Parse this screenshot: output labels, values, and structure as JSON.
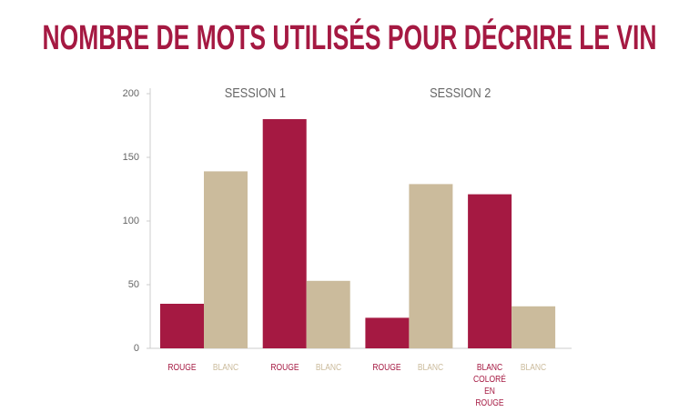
{
  "chart_data": {
    "type": "bar",
    "title": "NOMBRE DE MOTS UTILISÉS POUR DÉCRIRE LE VIN",
    "annotations": [
      "SESSION 1",
      "SESSION 2"
    ],
    "categories": [
      "ROUGE",
      "BLANC",
      "ROUGE",
      "BLANC",
      "ROUGE",
      "BLANC",
      "BLANC COLORÉ EN ROUGE",
      "BLANC"
    ],
    "values": [
      35,
      139,
      180,
      53,
      24,
      129,
      121,
      33
    ],
    "colors": [
      "#a51942",
      "#cbbb9c",
      "#a51942",
      "#cbbb9c",
      "#a51942",
      "#cbbb9c",
      "#a51942",
      "#cbbb9c"
    ],
    "ylim": [
      0,
      200
    ],
    "yticks": [
      0,
      50,
      100,
      150,
      200
    ],
    "grid": false
  }
}
